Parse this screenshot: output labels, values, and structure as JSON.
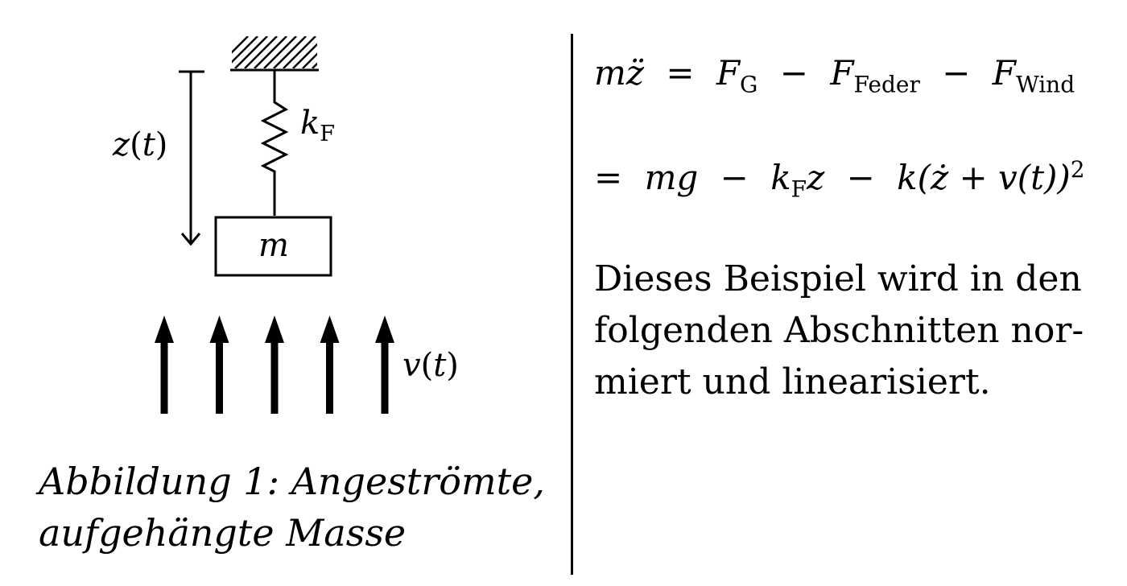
{
  "diagram": {
    "displacement_label": {
      "fn": "z",
      "arg": "t"
    },
    "spring_label": {
      "sym": "k",
      "sub": "F"
    },
    "mass_label": "m",
    "wind_label": {
      "fn": "v",
      "arg": "t"
    },
    "wind_arrow_count": 5
  },
  "caption": {
    "line1": "Abbildung 1: Angeströmte,",
    "line2": "aufgehängte Masse"
  },
  "equations": {
    "eq1": {
      "lhs": "mz̈",
      "rel": "=",
      "t1": "F",
      "t1_sub": "G",
      "op1": "−",
      "t2": "F",
      "t2_sub": "Feder",
      "op2": "−",
      "t3": "F",
      "t3_sub": "Wind"
    },
    "eq2": {
      "rel": "=",
      "t1": "mg",
      "op1": "−",
      "t2": "k",
      "t2_sub": "F",
      "t2_tail": "z",
      "op2": "−",
      "t3": "k(ż + v(t))",
      "t3_sup": "2"
    }
  },
  "paragraph": {
    "line1": "Dieses Beispiel wird in den",
    "line2": "folgenden Abschnitten nor-",
    "line3": "miert und linearisiert."
  },
  "colors": {
    "ink": "#000000",
    "background": "#ffffff"
  }
}
